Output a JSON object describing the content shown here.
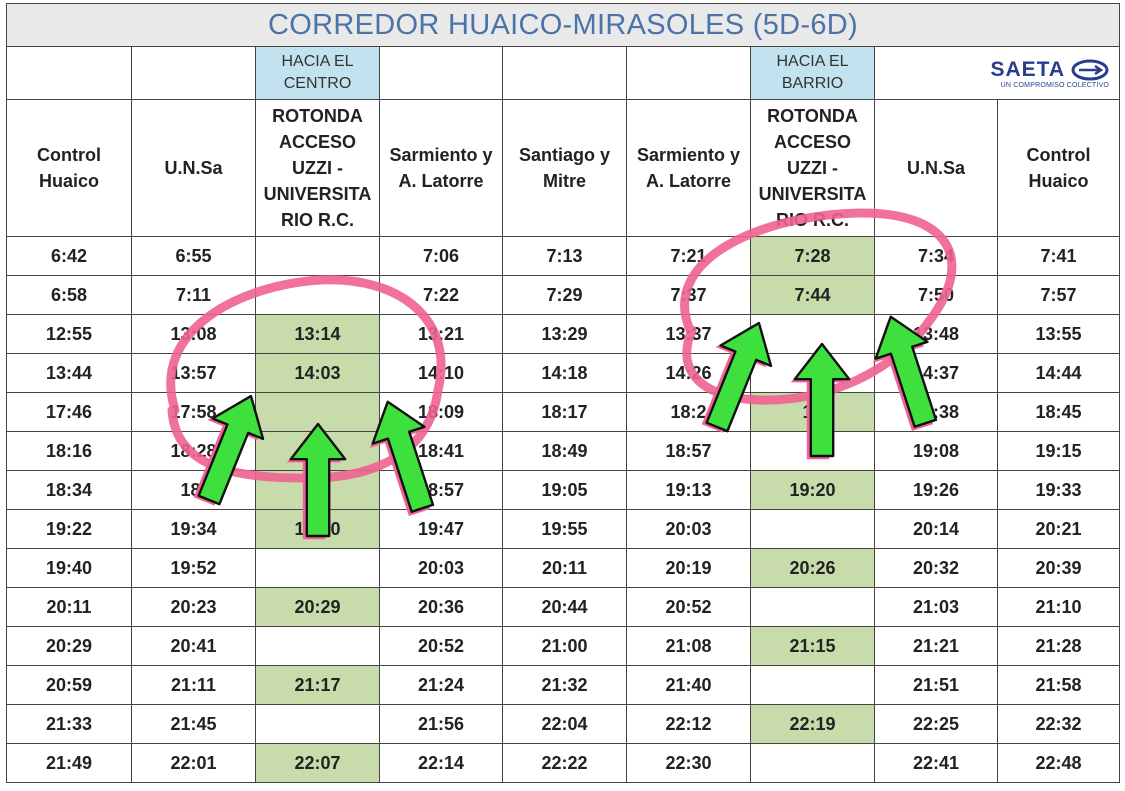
{
  "title": "CORREDOR HUAICO-MIRASOLES (5D-6D)",
  "direction_center": "HACIA EL CENTRO",
  "direction_barrio": "HACIA EL BARRIO",
  "logo": {
    "brand": "SAETA",
    "tagline": "UN COMPROMISO COLECTIVO",
    "icon": "saeta-logo-icon"
  },
  "columns": [
    "Control Huaico",
    "U.N.Sa",
    "ROTONDA ACCESO UZZI - UNIVERSITA RIO R.C.",
    "Sarmiento y A. Latorre",
    "Santiago y Mitre",
    "Sarmiento y A. Latorre",
    "ROTONDA ACCESO UZZI - UNIVERSITA RIO R.C.",
    "U.N.Sa",
    "Control Huaico"
  ],
  "rows": [
    [
      "6:42",
      "6:55",
      "",
      "7:06",
      "7:13",
      "7:21",
      "7:28",
      "7:34",
      "7:41"
    ],
    [
      "6:58",
      "7:11",
      "",
      "7:22",
      "7:29",
      "7:37",
      "7:44",
      "7:50",
      "7:57"
    ],
    [
      "12:55",
      "13:08",
      "13:14",
      "13:21",
      "13:29",
      "13:37",
      "",
      "13:48",
      "13:55"
    ],
    [
      "13:44",
      "13:57",
      "14:03",
      "14:10",
      "14:18",
      "14:26",
      "",
      "14:37",
      "14:44"
    ],
    [
      "17:46",
      "17:58",
      "",
      "18:09",
      "18:17",
      "18:2",
      "18",
      "18:38",
      "18:45"
    ],
    [
      "18:16",
      "18:28",
      "",
      "18:41",
      "18:49",
      "18:57",
      "",
      "19:08",
      "19:15"
    ],
    [
      "18:34",
      "18:",
      "",
      "18:57",
      "19:05",
      "19:13",
      "19:20",
      "19:26",
      "19:33"
    ],
    [
      "19:22",
      "19:34",
      "19:40",
      "19:47",
      "19:55",
      "20:03",
      "",
      "20:14",
      "20:21"
    ],
    [
      "19:40",
      "19:52",
      "",
      "20:03",
      "20:11",
      "20:19",
      "20:26",
      "20:32",
      "20:39"
    ],
    [
      "20:11",
      "20:23",
      "20:29",
      "20:36",
      "20:44",
      "20:52",
      "",
      "21:03",
      "21:10"
    ],
    [
      "20:29",
      "20:41",
      "",
      "20:52",
      "21:00",
      "21:08",
      "21:15",
      "21:21",
      "21:28"
    ],
    [
      "20:59",
      "21:11",
      "21:17",
      "21:24",
      "21:32",
      "21:40",
      "",
      "21:51",
      "21:58"
    ],
    [
      "21:33",
      "21:45",
      "",
      "21:56",
      "22:04",
      "22:12",
      "22:19",
      "22:25",
      "22:32"
    ],
    [
      "21:49",
      "22:01",
      "22:07",
      "22:14",
      "22:22",
      "22:30",
      "",
      "22:41",
      "22:48"
    ]
  ],
  "highlight_col2_rows": [
    2,
    3,
    4,
    5,
    6,
    7,
    9,
    11,
    13
  ],
  "highlight_col6_rows": [
    0,
    1,
    4,
    6,
    8,
    10,
    12
  ],
  "colors": {
    "highlight": "#c7dcaa",
    "direction": "#c3e2f0",
    "title_text": "#4a73a8",
    "circle": "#f06292",
    "arrow": "#3ee03e"
  }
}
